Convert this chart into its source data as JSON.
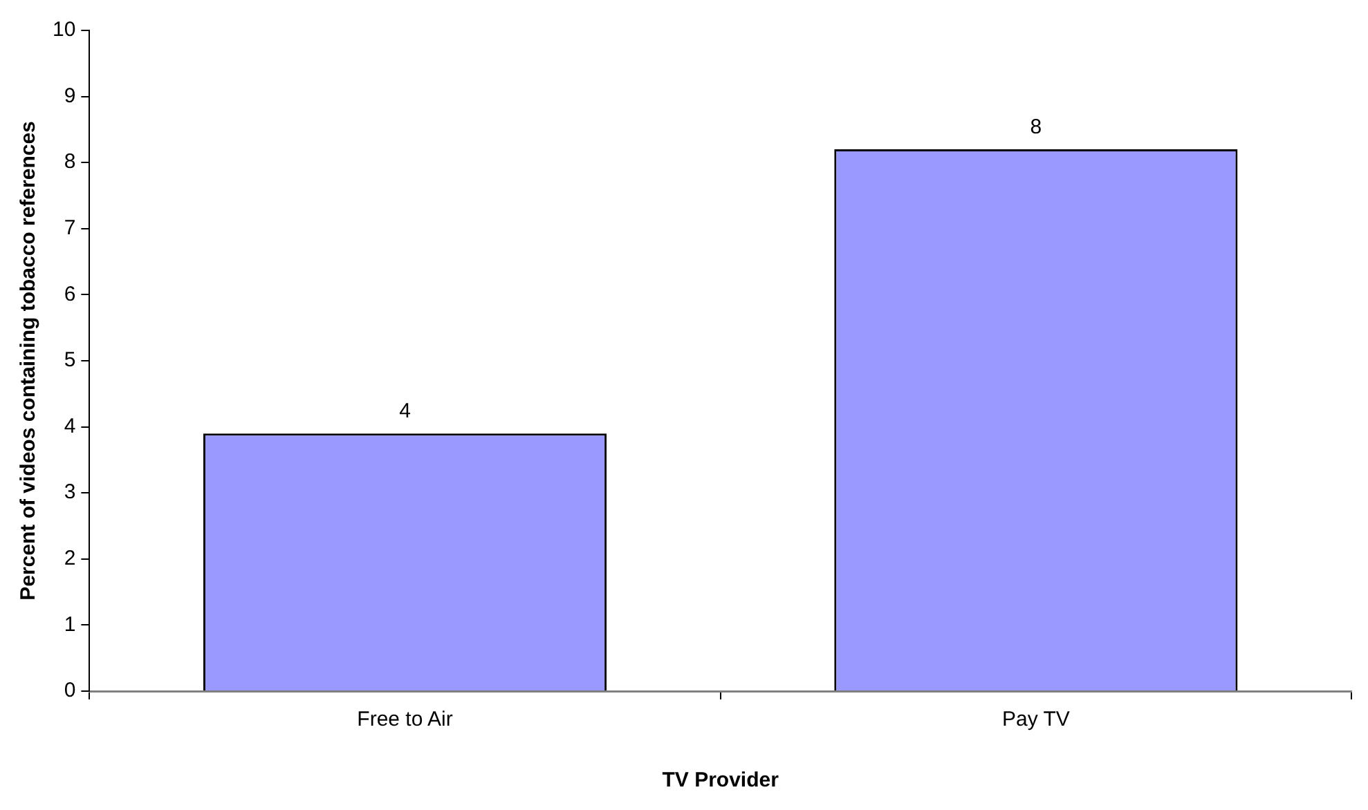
{
  "chart_data": {
    "type": "bar",
    "xlabel": "TV Provider",
    "ylabel": "Percent of videos containing tobacco references",
    "categories": [
      "Free to Air",
      "Pay TV"
    ],
    "values": [
      3.9,
      8.2
    ],
    "value_labels": [
      "4",
      "8"
    ],
    "color": "#9999ff",
    "ylim": [
      0,
      10
    ],
    "yticks": [
      0,
      1,
      2,
      3,
      4,
      5,
      6,
      7,
      8,
      9,
      10
    ],
    "grid": false,
    "legend": false
  }
}
